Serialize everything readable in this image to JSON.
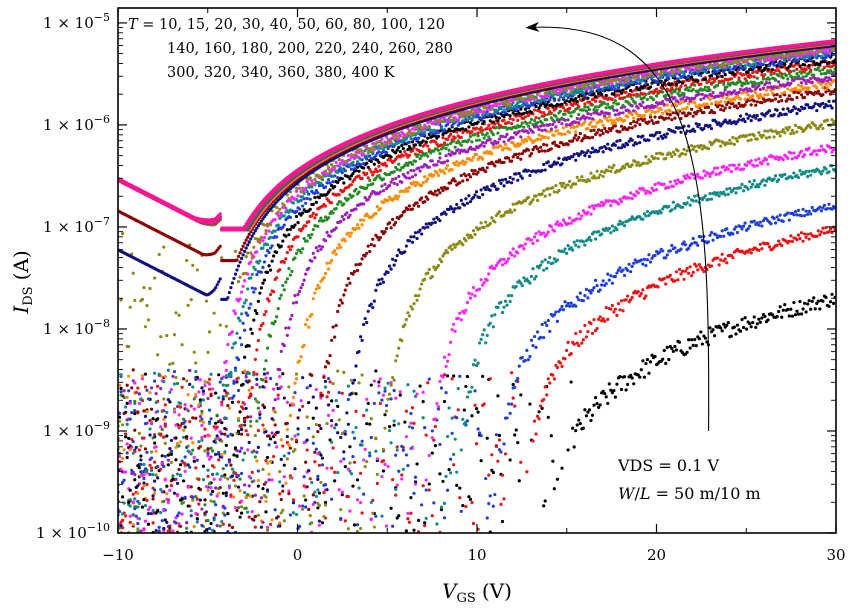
{
  "chart_data": {
    "type": "scatter",
    "title": "",
    "xlabel_main": "V",
    "xlabel_sub": "GS",
    "xlabel_unit": "(V)",
    "ylabel_main": "I",
    "ylabel_sub": "DS",
    "ylabel_unit": "(A)",
    "xlim": [
      -10,
      30
    ],
    "ylim": [
      1e-10,
      1.4e-05
    ],
    "yscale": "log",
    "x_ticks": [
      -10,
      0,
      10,
      20,
      30
    ],
    "x_tick_labels": [
      "−10",
      "0",
      "10",
      "20",
      "30"
    ],
    "y_ticks": [
      1e-10,
      1e-09,
      1e-08,
      1e-07,
      1e-06,
      1e-05
    ],
    "y_tick_labels": [
      {
        "base": "1 × 10",
        "exp": "−10"
      },
      {
        "base": "1 × 10",
        "exp": "−9"
      },
      {
        "base": "1 × 10",
        "exp": "−8"
      },
      {
        "base": "1 × 10",
        "exp": "−7"
      },
      {
        "base": "1 × 10",
        "exp": "−6"
      },
      {
        "base": "1 × 10",
        "exp": "−5"
      }
    ],
    "grid": false,
    "legend": "none",
    "annotations": {
      "temps_line1_prefix": "T",
      "temps_line1": " = 10, 15, 20, 30, 40, 50, 60, 80, 100, 120",
      "temps_line2": "140, 160, 180, 200, 220, 240, 260, 280",
      "temps_line3": "300, 320, 340, 360, 380, 400 K",
      "vds": "VDS = 0.1 V",
      "wl_prefix": "W",
      "wl_mid": "/",
      "wl_L": "L",
      "wl_rest": " = 50 m/10 m",
      "arrow_from": [
        22.9,
        1e-09
      ],
      "arrow_to": [
        12.8,
        9e-06
      ]
    },
    "series": [
      {
        "T": 10,
        "color": "#000000",
        "vth": 14.2,
        "subthreshold_slope_dec": 0.52,
        "i_at_30": 2e-08,
        "floor": 1e-10,
        "floor_spread": 1.6
      },
      {
        "T": 15,
        "color": "#ee1111",
        "vth": 13.0,
        "subthreshold_slope_dec": 0.6,
        "i_at_30": 9.5e-08,
        "floor": 1e-10,
        "floor_spread": 1.6
      },
      {
        "T": 20,
        "color": "#1f3fdb",
        "vth": 11.5,
        "subthreshold_slope_dec": 0.68,
        "i_at_30": 1.6e-07,
        "floor": 1e-10,
        "floor_spread": 1.6
      },
      {
        "T": 30,
        "color": "#128a8a",
        "vth": 9.5,
        "subthreshold_slope_dec": 0.72,
        "i_at_30": 3.8e-07,
        "floor": 1e-10,
        "floor_spread": 1.6
      },
      {
        "T": 40,
        "color": "#ff22ff",
        "vth": 8.0,
        "subthreshold_slope_dec": 0.75,
        "i_at_30": 6e-07,
        "floor": 1e-10,
        "floor_spread": 1.6
      },
      {
        "T": 50,
        "color": "#8a8a14",
        "vth": 5.5,
        "subthreshold_slope_dec": 0.8,
        "i_at_30": 1.05e-06,
        "floor": 1e-10,
        "floor_spread": 1.6
      },
      {
        "T": 60,
        "color": "#101080",
        "vth": 3.5,
        "subthreshold_slope_dec": 0.85,
        "i_at_30": 1.6e-06,
        "floor": 1e-10,
        "floor_spread": 1.6
      },
      {
        "T": 80,
        "color": "#8b0000",
        "vth": 2.0,
        "subthreshold_slope_dec": 0.9,
        "i_at_30": 2.2e-06,
        "floor": 1e-10,
        "floor_spread": 1.6
      },
      {
        "T": 100,
        "color": "#ff8c00",
        "vth": 0.5,
        "subthreshold_slope_dec": 0.95,
        "i_at_30": 2.6e-06,
        "floor": 1e-10,
        "floor_spread": 1.6
      },
      {
        "T": 120,
        "color": "#9d1dbd",
        "vth": -0.5,
        "subthreshold_slope_dec": 1.0,
        "i_at_30": 3e-06,
        "floor": 1e-10,
        "floor_spread": 1.6
      },
      {
        "T": 140,
        "color": "#228b22",
        "vth": -1.3,
        "subthreshold_slope_dec": 1.05,
        "i_at_30": 3.5e-06,
        "floor": 1e-10,
        "floor_spread": 1.6
      },
      {
        "T": 160,
        "color": "#ee1111",
        "vth": -1.8,
        "subthreshold_slope_dec": 1.1,
        "i_at_30": 4e-06,
        "floor": 1e-10,
        "floor_spread": 1.6
      },
      {
        "T": 180,
        "color": "#000000",
        "vth": -2.3,
        "subthreshold_slope_dec": 1.15,
        "i_at_30": 4.5e-06,
        "floor": 1e-10,
        "floor_spread": 1.6
      },
      {
        "T": 200,
        "color": "#1f3fdb",
        "vth": -2.7,
        "subthreshold_slope_dec": 1.2,
        "i_at_30": 5e-06,
        "floor": 1e-10,
        "floor_spread": 1.6
      },
      {
        "T": 220,
        "color": "#128a8a",
        "vth": -3.0,
        "subthreshold_slope_dec": 1.25,
        "i_at_30": 5.3e-06,
        "floor": 1e-10,
        "floor_spread": 1.6
      },
      {
        "T": 240,
        "color": "#ff22ff",
        "vth": -3.3,
        "subthreshold_slope_dec": 1.3,
        "i_at_30": 5.6e-06,
        "floor": 1e-10,
        "floor_spread": 1.6
      },
      {
        "T": 260,
        "color": "#8a8a14",
        "vth": -3.6,
        "subthreshold_slope_dec": 1.35,
        "i_at_30": 5.8e-06,
        "floor": 4.5e-09,
        "floor_spread": 1.3
      },
      {
        "T": 280,
        "color": "#101080",
        "vth": -3.9,
        "subthreshold_slope_dec": 1.4,
        "i_at_30": 6e-06,
        "floor": 5e-08,
        "floor_spread": 0.0
      },
      {
        "T": 300,
        "color": "#8b0000",
        "vth": -4.1,
        "subthreshold_slope_dec": 1.45,
        "i_at_30": 6.2e-06,
        "floor": 1.2e-07,
        "floor_spread": 0.0
      },
      {
        "T": 320,
        "color": "#ff8c00",
        "vth": -4.2,
        "subthreshold_slope_dec": 1.5,
        "i_at_30": 6.3e-06,
        "floor": 2.4e-07,
        "floor_spread": 0.0
      },
      {
        "T": 340,
        "color": "#9d1dbd",
        "vth": -4.3,
        "subthreshold_slope_dec": 1.55,
        "i_at_30": 6.4e-06,
        "floor": 2.4e-07,
        "floor_spread": 0.0
      },
      {
        "T": 360,
        "color": "#228b22",
        "vth": -4.4,
        "subthreshold_slope_dec": 1.6,
        "i_at_30": 6.5e-06,
        "floor": 2.4e-07,
        "floor_spread": 0.0
      },
      {
        "T": 380,
        "color": "#ff1493",
        "vth": -4.5,
        "subthreshold_slope_dec": 1.65,
        "i_at_30": 6.6e-06,
        "floor": 2.4e-07,
        "floor_spread": 0.0
      },
      {
        "T": 400,
        "color": "#ff1493",
        "vth": -4.6,
        "subthreshold_slope_dec": 1.7,
        "i_at_30": 6.7e-06,
        "floor": 2.5e-07,
        "floor_spread": 0.0
      }
    ]
  }
}
